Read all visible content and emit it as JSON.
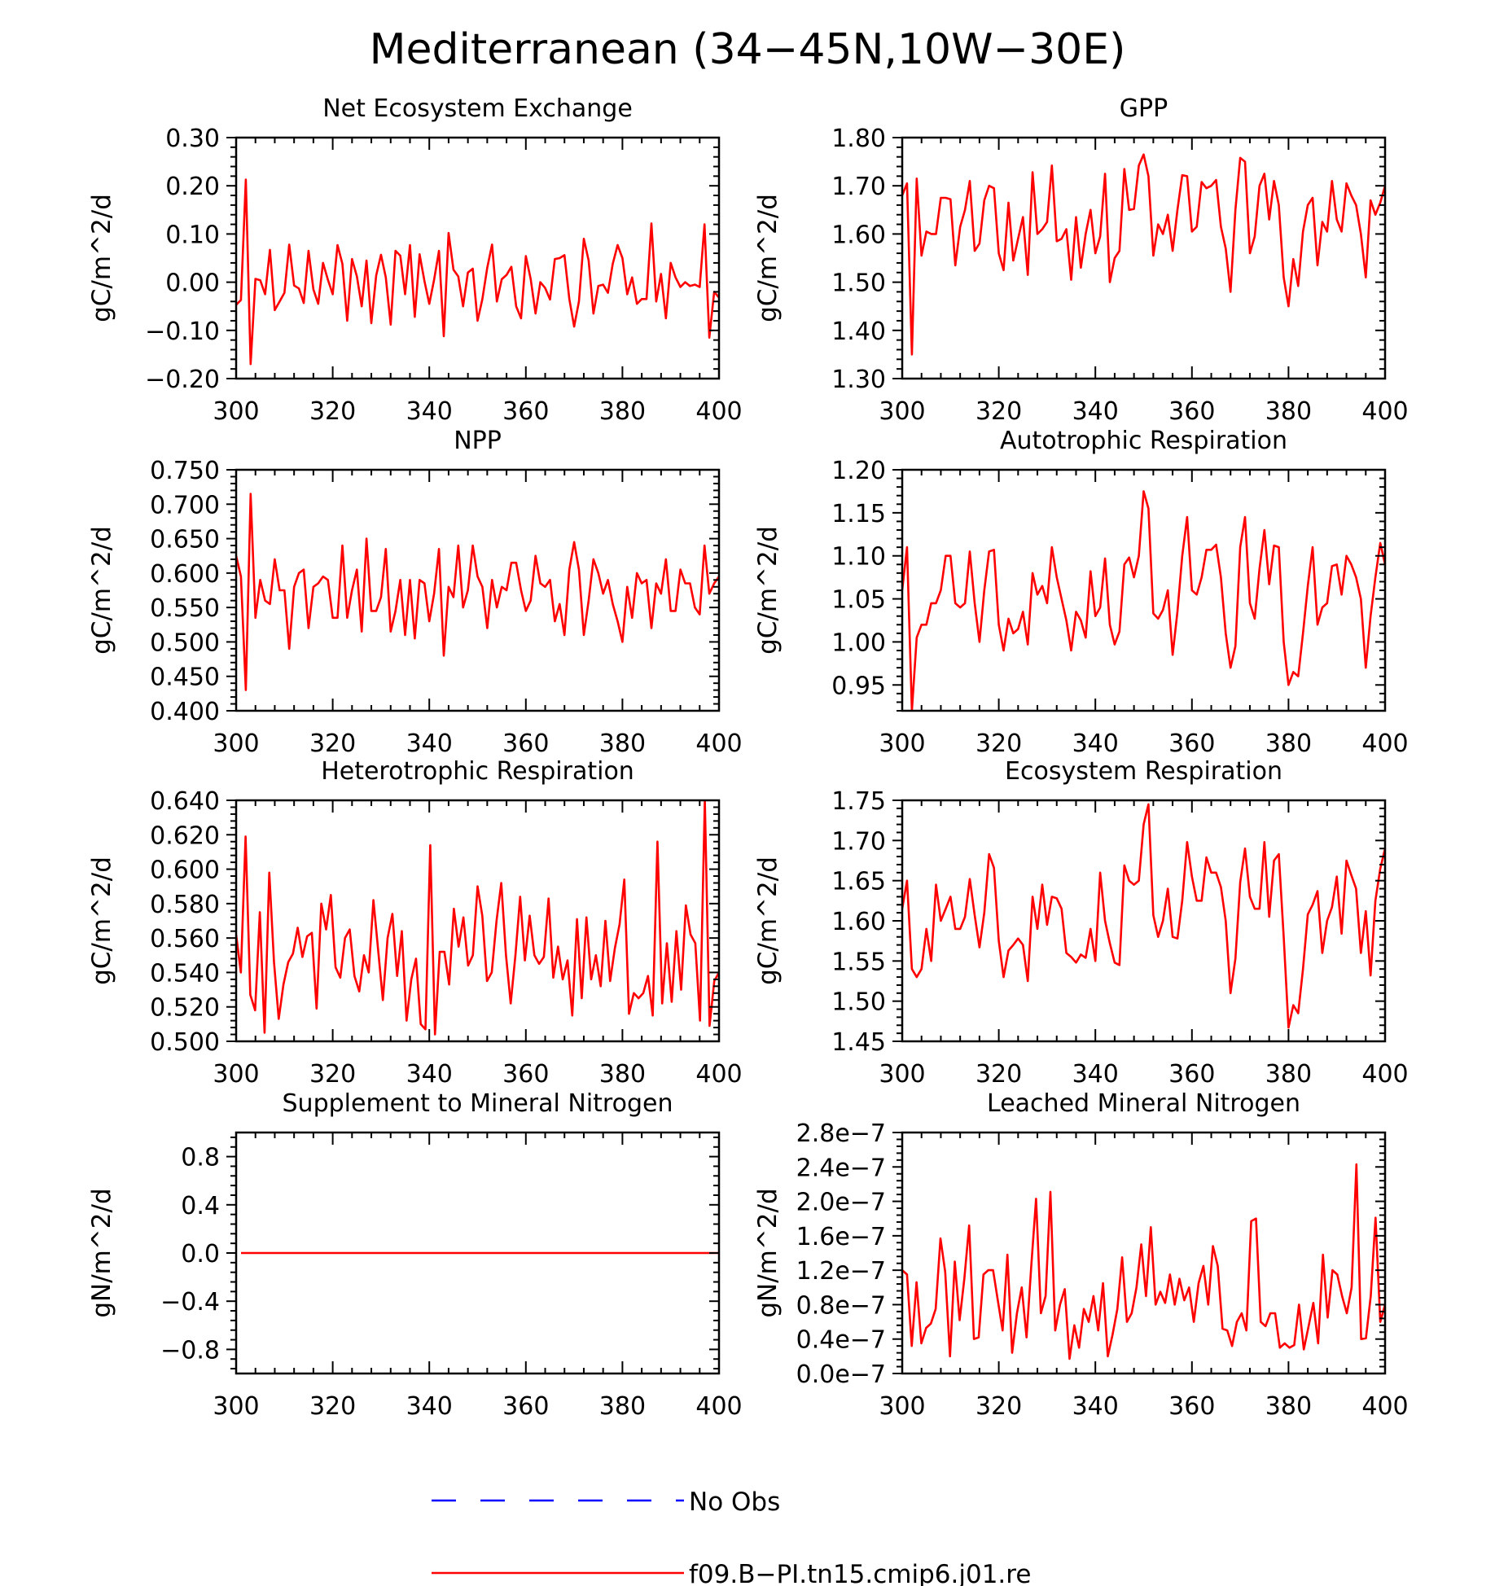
{
  "figure_title": "Mediterranean (34−45N,10W−30E)",
  "legend": [
    {
      "label": "No Obs",
      "color": "#0000ff",
      "dash": "dashed"
    },
    {
      "label": "f09.B−PI.tn15.cmip6.j01.re",
      "color": "#ff0000",
      "dash": "solid"
    }
  ],
  "chart_data": [
    {
      "type": "line",
      "title": "Net Ecosystem Exchange",
      "xlabel": "",
      "ylabel": "gC/m^2/d",
      "xlim": [
        300,
        400
      ],
      "ylim": [
        -0.2,
        0.3
      ],
      "xticks": [
        300,
        320,
        340,
        360,
        380,
        400
      ],
      "yticks": [
        -0.2,
        -0.1,
        0.0,
        0.1,
        0.2,
        0.3
      ],
      "yticklabels": [
        "−0.20",
        "−0.10",
        "0.00",
        "0.10",
        "0.20",
        "0.30"
      ],
      "series": [
        {
          "name": "f09.B−PI.tn15.cmip6.j01.re",
          "color": "#ff0000",
          "values": [
            -0.047,
            -0.037,
            0.213,
            -0.17,
            0.007,
            0.004,
            -0.025,
            0.067,
            -0.058,
            -0.04,
            -0.022,
            0.078,
            -0.007,
            -0.013,
            -0.043,
            0.065,
            -0.015,
            -0.045,
            0.04,
            0.005,
            -0.025,
            0.077,
            0.038,
            -0.08,
            0.048,
            0.012,
            -0.05,
            0.045,
            -0.085,
            0.014,
            0.057,
            0.01,
            -0.088,
            0.065,
            0.055,
            -0.025,
            0.077,
            -0.072,
            0.058,
            0.002,
            -0.045,
            0.005,
            0.065,
            -0.112,
            0.102,
            0.026,
            0.012,
            -0.05,
            0.02,
            0.028,
            -0.08,
            -0.035,
            0.03,
            0.078,
            -0.04,
            0.006,
            0.015,
            0.032,
            -0.05,
            -0.075,
            0.054,
            0.007,
            -0.065,
            0.0,
            -0.012,
            -0.036,
            0.048,
            0.05,
            0.056,
            -0.035,
            -0.092,
            -0.04,
            0.09,
            0.045,
            -0.065,
            -0.008,
            -0.005,
            -0.022,
            0.038,
            0.077,
            0.05,
            -0.025,
            0.01,
            -0.045,
            -0.035,
            -0.035,
            0.122,
            -0.04,
            0.017,
            -0.075,
            0.04,
            0.01,
            -0.01,
            0.0,
            -0.008,
            -0.005,
            -0.01,
            0.12,
            -0.115,
            -0.02,
            -0.032
          ]
        }
      ]
    },
    {
      "type": "line",
      "title": "GPP",
      "xlabel": "",
      "ylabel": "gC/m^2/d",
      "xlim": [
        300,
        400
      ],
      "ylim": [
        1.3,
        1.8
      ],
      "xticks": [
        300,
        320,
        340,
        360,
        380,
        400
      ],
      "yticks": [
        1.3,
        1.4,
        1.5,
        1.6,
        1.7,
        1.8
      ],
      "yticklabels": [
        "1.30",
        "1.40",
        "1.50",
        "1.60",
        "1.70",
        "1.80"
      ],
      "series": [
        {
          "name": "f09.B−PI.tn15.cmip6.j01.re",
          "color": "#ff0000",
          "values": [
            1.68,
            1.705,
            1.35,
            1.715,
            1.555,
            1.605,
            1.6,
            1.6,
            1.675,
            1.675,
            1.672,
            1.535,
            1.615,
            1.65,
            1.71,
            1.565,
            1.58,
            1.67,
            1.7,
            1.695,
            1.56,
            1.525,
            1.665,
            1.545,
            1.59,
            1.635,
            1.515,
            1.728,
            1.6,
            1.61,
            1.625,
            1.742,
            1.585,
            1.59,
            1.61,
            1.505,
            1.635,
            1.53,
            1.6,
            1.65,
            1.56,
            1.595,
            1.725,
            1.5,
            1.55,
            1.565,
            1.735,
            1.65,
            1.652,
            1.742,
            1.765,
            1.72,
            1.555,
            1.62,
            1.6,
            1.64,
            1.565,
            1.65,
            1.722,
            1.72,
            1.605,
            1.615,
            1.708,
            1.695,
            1.7,
            1.712,
            1.615,
            1.57,
            1.48,
            1.65,
            1.758,
            1.75,
            1.56,
            1.595,
            1.7,
            1.725,
            1.63,
            1.71,
            1.66,
            1.51,
            1.45,
            1.548,
            1.492,
            1.605,
            1.66,
            1.675,
            1.535,
            1.625,
            1.605,
            1.71,
            1.63,
            1.605,
            1.705,
            1.68,
            1.66,
            1.6,
            1.51,
            1.67,
            1.64,
            1.665,
            1.7
          ]
        }
      ]
    },
    {
      "type": "line",
      "title": "NPP",
      "xlabel": "",
      "ylabel": "gC/m^2/d",
      "xlim": [
        300,
        400
      ],
      "ylim": [
        0.4,
        0.75
      ],
      "xticks": [
        300,
        320,
        340,
        360,
        380,
        400
      ],
      "yticks": [
        0.4,
        0.45,
        0.5,
        0.55,
        0.6,
        0.65,
        0.7,
        0.75
      ],
      "yticklabels": [
        "0.400",
        "0.450",
        "0.500",
        "0.550",
        "0.600",
        "0.650",
        "0.700",
        "0.750"
      ],
      "series": [
        {
          "name": "f09.B−PI.tn15.cmip6.j01.re",
          "color": "#ff0000",
          "values": [
            0.625,
            0.595,
            0.43,
            0.715,
            0.535,
            0.59,
            0.56,
            0.555,
            0.62,
            0.575,
            0.575,
            0.49,
            0.58,
            0.6,
            0.605,
            0.52,
            0.58,
            0.585,
            0.595,
            0.59,
            0.535,
            0.535,
            0.64,
            0.535,
            0.575,
            0.605,
            0.515,
            0.65,
            0.545,
            0.545,
            0.565,
            0.635,
            0.515,
            0.545,
            0.59,
            0.51,
            0.59,
            0.505,
            0.59,
            0.585,
            0.53,
            0.57,
            0.635,
            0.48,
            0.58,
            0.565,
            0.64,
            0.55,
            0.575,
            0.64,
            0.595,
            0.58,
            0.52,
            0.59,
            0.55,
            0.58,
            0.575,
            0.615,
            0.615,
            0.575,
            0.545,
            0.56,
            0.625,
            0.585,
            0.58,
            0.59,
            0.53,
            0.555,
            0.51,
            0.605,
            0.645,
            0.605,
            0.51,
            0.56,
            0.62,
            0.6,
            0.57,
            0.59,
            0.555,
            0.53,
            0.5,
            0.58,
            0.535,
            0.6,
            0.585,
            0.59,
            0.52,
            0.585,
            0.57,
            0.62,
            0.545,
            0.545,
            0.605,
            0.585,
            0.585,
            0.55,
            0.54,
            0.64,
            0.57,
            0.585,
            0.595
          ]
        }
      ]
    },
    {
      "type": "line",
      "title": "Autotrophic Respiration",
      "xlabel": "",
      "ylabel": "gC/m^2/d",
      "xlim": [
        300,
        400
      ],
      "ylim": [
        0.92,
        1.2
      ],
      "xticks": [
        300,
        320,
        340,
        360,
        380,
        400
      ],
      "yticks": [
        0.95,
        1.0,
        1.05,
        1.1,
        1.15,
        1.2
      ],
      "yticklabels": [
        "0.95",
        "1.00",
        "1.05",
        "1.10",
        "1.15",
        "1.20"
      ],
      "series": [
        {
          "name": "f09.B−PI.tn15.cmip6.j01.re",
          "color": "#ff0000",
          "values": [
            1.06,
            1.11,
            0.92,
            1.005,
            1.02,
            1.02,
            1.045,
            1.045,
            1.06,
            1.1,
            1.1,
            1.045,
            1.04,
            1.045,
            1.105,
            1.045,
            1.0,
            1.06,
            1.105,
            1.107,
            1.02,
            0.99,
            1.027,
            1.01,
            1.015,
            1.035,
            0.997,
            1.08,
            1.055,
            1.065,
            1.045,
            1.11,
            1.075,
            1.05,
            1.025,
            0.99,
            1.035,
            1.025,
            1.005,
            1.082,
            1.03,
            1.04,
            1.097,
            1.02,
            0.997,
            1.012,
            1.09,
            1.098,
            1.075,
            1.1,
            1.175,
            1.155,
            1.033,
            1.027,
            1.037,
            1.06,
            0.985,
            1.035,
            1.1,
            1.145,
            1.06,
            1.055,
            1.075,
            1.107,
            1.107,
            1.113,
            1.075,
            1.01,
            0.97,
            0.995,
            1.11,
            1.145,
            1.045,
            1.027,
            1.085,
            1.13,
            1.067,
            1.112,
            1.11,
            1.0,
            0.95,
            0.965,
            0.96,
            1.01,
            1.065,
            1.11,
            1.02,
            1.04,
            1.045,
            1.088,
            1.09,
            1.055,
            1.1,
            1.09,
            1.075,
            1.05,
            0.97,
            1.03,
            1.075,
            1.115,
            1.09
          ]
        }
      ]
    },
    {
      "type": "line",
      "title": "Heterotrophic Respiration",
      "xlabel": "",
      "ylabel": "gC/m^2/d",
      "xlim": [
        300,
        400
      ],
      "ylim": [
        0.5,
        0.64
      ],
      "xticks": [
        300,
        320,
        340,
        360,
        380,
        400
      ],
      "yticks": [
        0.5,
        0.52,
        0.54,
        0.56,
        0.58,
        0.6,
        0.62,
        0.64
      ],
      "yticklabels": [
        "0.500",
        "0.520",
        "0.540",
        "0.560",
        "0.580",
        "0.600",
        "0.620",
        "0.640"
      ],
      "series": [
        {
          "name": "f09.B−PI.tn15.cmip6.j01.re",
          "color": "#ff0000",
          "values": [
            0.562,
            0.54,
            0.619,
            0.527,
            0.518,
            0.575,
            0.505,
            0.598,
            0.546,
            0.513,
            0.533,
            0.546,
            0.551,
            0.566,
            0.549,
            0.561,
            0.563,
            0.519,
            0.58,
            0.565,
            0.585,
            0.543,
            0.537,
            0.56,
            0.565,
            0.538,
            0.529,
            0.55,
            0.54,
            0.582,
            0.553,
            0.524,
            0.56,
            0.574,
            0.538,
            0.564,
            0.512,
            0.536,
            0.548,
            0.51,
            0.507,
            0.614,
            0.504,
            0.552,
            0.552,
            0.533,
            0.577,
            0.555,
            0.572,
            0.544,
            0.55,
            0.59,
            0.573,
            0.535,
            0.54,
            0.57,
            0.592,
            0.55,
            0.522,
            0.55,
            0.584,
            0.547,
            0.573,
            0.55,
            0.545,
            0.549,
            0.583,
            0.537,
            0.555,
            0.536,
            0.547,
            0.515,
            0.571,
            0.525,
            0.572,
            0.536,
            0.55,
            0.532,
            0.57,
            0.535,
            0.554,
            0.568,
            0.594,
            0.516,
            0.528,
            0.525,
            0.528,
            0.538,
            0.515,
            0.616,
            0.522,
            0.557,
            0.523,
            0.564,
            0.53,
            0.579,
            0.562,
            0.557,
            0.512,
            0.64,
            0.509,
            0.535,
            0.54
          ]
        }
      ]
    },
    {
      "type": "line",
      "title": "Ecosystem Respiration",
      "xlabel": "",
      "ylabel": "gC/m^2/d",
      "xlim": [
        300,
        400
      ],
      "ylim": [
        1.45,
        1.75
      ],
      "xticks": [
        300,
        320,
        340,
        360,
        380,
        400
      ],
      "yticks": [
        1.45,
        1.5,
        1.55,
        1.6,
        1.65,
        1.7,
        1.75
      ],
      "yticklabels": [
        "1.45",
        "1.50",
        "1.55",
        "1.60",
        "1.65",
        "1.70",
        "1.75"
      ],
      "series": [
        {
          "name": "f09.B−PI.tn15.cmip6.j01.re",
          "color": "#ff0000",
          "values": [
            1.615,
            1.65,
            1.54,
            1.53,
            1.54,
            1.59,
            1.55,
            1.645,
            1.6,
            1.615,
            1.63,
            1.59,
            1.59,
            1.605,
            1.652,
            1.607,
            1.567,
            1.61,
            1.683,
            1.666,
            1.575,
            1.53,
            1.563,
            1.57,
            1.578,
            1.57,
            1.525,
            1.63,
            1.59,
            1.645,
            1.595,
            1.63,
            1.628,
            1.615,
            1.56,
            1.555,
            1.548,
            1.558,
            1.554,
            1.59,
            1.55,
            1.66,
            1.6,
            1.572,
            1.548,
            1.545,
            1.669,
            1.65,
            1.645,
            1.65,
            1.72,
            1.745,
            1.607,
            1.58,
            1.6,
            1.64,
            1.58,
            1.578,
            1.625,
            1.698,
            1.655,
            1.625,
            1.625,
            1.679,
            1.66,
            1.66,
            1.642,
            1.6,
            1.51,
            1.553,
            1.648,
            1.69,
            1.63,
            1.615,
            1.615,
            1.698,
            1.605,
            1.675,
            1.683,
            1.58,
            1.467,
            1.495,
            1.485,
            1.54,
            1.608,
            1.62,
            1.637,
            1.56,
            1.6,
            1.617,
            1.655,
            1.584,
            1.675,
            1.657,
            1.64,
            1.56,
            1.612,
            1.532,
            1.625,
            1.665,
            1.69
          ]
        }
      ]
    },
    {
      "type": "line",
      "title": "Supplement to Mineral Nitrogen",
      "xlabel": "",
      "ylabel": "gN/m^2/d",
      "xlim": [
        300,
        400
      ],
      "ylim": [
        -1.0,
        1.0
      ],
      "xticks": [
        300,
        320,
        340,
        360,
        380,
        400
      ],
      "yticks": [
        -0.8,
        -0.4,
        0.0,
        0.4,
        0.8
      ],
      "yticklabels": [
        "−0.8",
        "−0.4",
        "0.0",
        "0.4",
        "0.8"
      ],
      "series": [
        {
          "name": "f09.B−PI.tn15.cmip6.j01.re",
          "color": "#ff0000",
          "values": [
            0,
            0
          ]
        }
      ]
    },
    {
      "type": "line",
      "title": "Leached Mineral Nitrogen",
      "xlabel": "",
      "ylabel": "gN/m^2/d",
      "xlim": [
        300,
        400
      ],
      "ylim": [
        0,
        2.8e-07
      ],
      "xticks": [
        300,
        320,
        340,
        360,
        380,
        400
      ],
      "yticks": [
        0,
        4e-08,
        8e-08,
        1.2e-07,
        1.6e-07,
        2e-07,
        2.4e-07,
        2.8e-07
      ],
      "yticklabels": [
        "0.0e−7",
        "0.4e−7",
        "0.8e−7",
        "1.2e−7",
        "1.6e−7",
        "2.0e−7",
        "2.4e−7",
        "2.8e−7"
      ],
      "series": [
        {
          "name": "f09.B−PI.tn15.cmip6.j01.re",
          "color": "#ff0000",
          "values": [
            1.2e-07,
            1.15e-07,
            3.2e-08,
            1.06e-07,
            3.5e-08,
            5.3e-08,
            5.8e-08,
            7.5e-08,
            1.57e-07,
            1.18e-07,
            2e-08,
            1.3e-07,
            6.2e-08,
            1.1e-07,
            1.72e-07,
            4e-08,
            4.2e-08,
            1.15e-07,
            1.2e-07,
            1.2e-07,
            8.5e-08,
            5e-08,
            1.38e-07,
            2.4e-08,
            7e-08,
            1e-07,
            4.2e-08,
            1.25e-07,
            2.03e-07,
            7e-08,
            9e-08,
            2.11e-07,
            5e-08,
            8e-08,
            9.8e-08,
            1.7e-08,
            5.6e-08,
            3e-08,
            7.5e-08,
            6e-08,
            9e-08,
            5e-08,
            1.05e-07,
            2e-08,
            4.5e-08,
            7.5e-08,
            1.35e-07,
            6e-08,
            7e-08,
            1e-07,
            1.5e-07,
            9e-08,
            1.7e-07,
            8e-08,
            9.5e-08,
            8.2e-08,
            1.15e-07,
            8e-08,
            1.1e-07,
            8.5e-08,
            1e-07,
            6e-08,
            1.05e-07,
            1.25e-07,
            8e-08,
            1.48e-07,
            1.25e-07,
            5.2e-08,
            5e-08,
            3.2e-08,
            6e-08,
            7e-08,
            5e-08,
            1.77e-07,
            1.8e-07,
            6e-08,
            5.5e-08,
            7e-08,
            7e-08,
            3e-08,
            3.5e-08,
            3e-08,
            3.3e-08,
            8e-08,
            2.8e-08,
            5.5e-08,
            8.2e-08,
            3.5e-08,
            1.38e-07,
            6.5e-08,
            1.2e-07,
            1.15e-07,
            9e-08,
            7e-08,
            1e-07,
            2.43e-07,
            4e-08,
            4.1e-08,
            9e-08,
            1.81e-07,
            6e-08,
            8e-08
          ]
        }
      ]
    }
  ]
}
